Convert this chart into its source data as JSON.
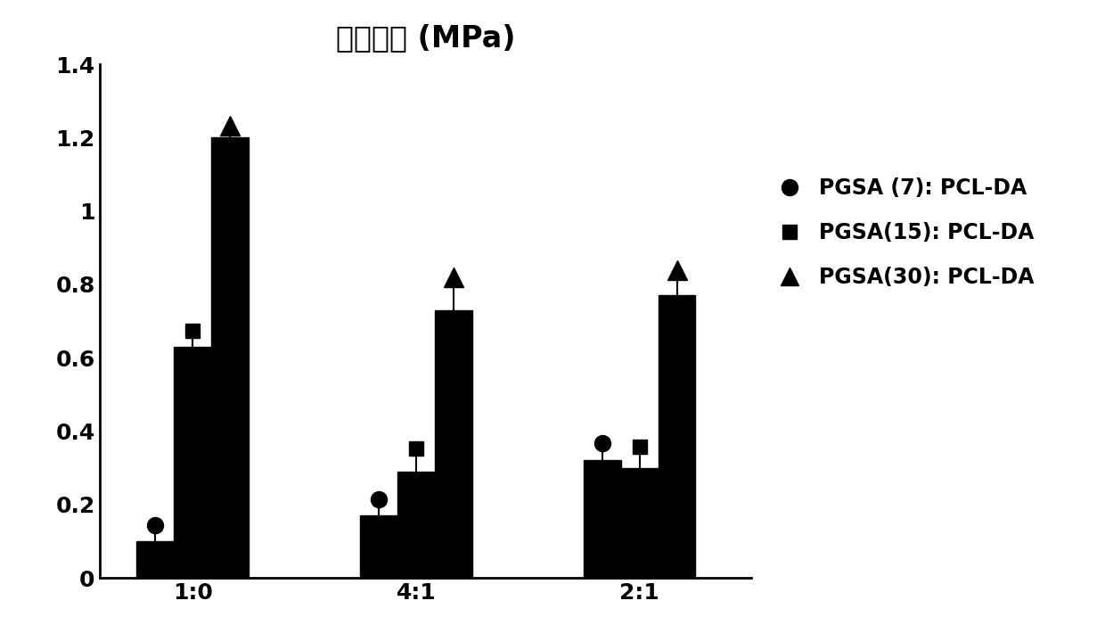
{
  "title": "抗张强度 (MPa)",
  "categories": [
    "1:0",
    "4:1",
    "2:1"
  ],
  "series_order": [
    "PGSA(7): PCL-DA",
    "PGSA(15): PCL-DA",
    "PGSA(30): PCL-DA"
  ],
  "series": {
    "PGSA(7): PCL-DA": {
      "values": [
        0.1,
        0.17,
        0.32
      ],
      "errors": [
        0.025,
        0.025,
        0.03
      ],
      "marker": "o"
    },
    "PGSA(15): PCL-DA": {
      "values": [
        0.63,
        0.29,
        0.3
      ],
      "errors": [
        0.025,
        0.045,
        0.04
      ],
      "marker": "s"
    },
    "PGSA(30): PCL-DA": {
      "values": [
        1.2,
        0.73,
        0.77
      ],
      "errors": [
        0.015,
        0.07,
        0.05
      ],
      "marker": "^"
    }
  },
  "ylim": [
    0,
    1.4
  ],
  "yticks": [
    0,
    0.2,
    0.4,
    0.6,
    0.8,
    1.0,
    1.2,
    1.4
  ],
  "bar_width": 0.2,
  "bar_color": "#000000",
  "background_color": "#ffffff",
  "title_fontsize": 24,
  "tick_fontsize": 18,
  "legend_fontsize": 17,
  "group_centers": [
    1.0,
    2.2,
    3.4
  ],
  "legend_labels": [
    "PGSA (7): PCL-DA",
    "PGSA(15): PCL-DA",
    "PGSA(30): PCL-DA"
  ]
}
